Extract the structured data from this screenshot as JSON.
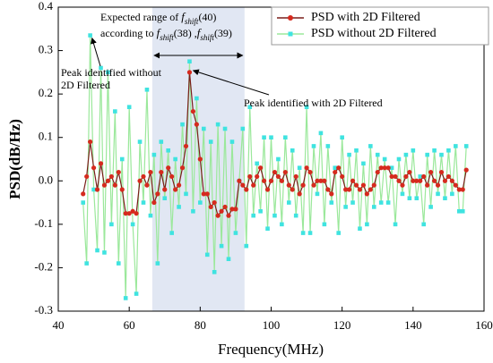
{
  "chart_data": {
    "type": "line",
    "xlabel": "Frequency(MHz)",
    "ylabel": "PSD(dB/Hz)",
    "xlim": [
      40,
      160
    ],
    "xticks": [
      40,
      60,
      80,
      100,
      120,
      140,
      160
    ],
    "ylim": [
      -0.3,
      0.4
    ],
    "yticks": [
      -0.3,
      -0.2,
      -0.1,
      {
        "value": 0,
        "label": "0.0"
      },
      0.1,
      0.2,
      0.3,
      0.4
    ],
    "legend": "upper right",
    "highlight": [
      66.5,
      92.5
    ],
    "highlight_color": "#d9e1f0",
    "annotations": {
      "range": [
        [
          {
            "text": "Expected range of "
          },
          {
            "text": "f",
            "style": "italic"
          },
          {
            "text": "shift",
            "style": "sub"
          },
          {
            "text": "(40)"
          }
        ],
        [
          {
            "text": "according to "
          },
          {
            "text": "f",
            "style": "italic"
          },
          {
            "text": "shift",
            "style": "sub"
          },
          {
            "text": "(38) ,"
          },
          {
            "text": "f",
            "style": "italic"
          },
          {
            "text": "shift",
            "style": "sub"
          },
          {
            "text": "(39)"
          }
        ]
      ],
      "without": [
        "Peak identified  without",
        "2D Filtered"
      ],
      "with": "Peak identified with 2D Filtered"
    },
    "x": [
      47,
      48,
      49,
      50,
      51,
      52,
      53,
      54,
      55,
      56,
      57,
      58,
      59,
      60,
      61,
      62,
      63,
      64,
      65,
      66,
      67,
      68,
      69,
      70,
      71,
      72,
      73,
      74,
      75,
      76,
      77,
      78,
      79,
      80,
      81,
      82,
      83,
      84,
      85,
      86,
      87,
      88,
      89,
      90,
      91,
      92,
      93,
      94,
      95,
      96,
      97,
      98,
      99,
      100,
      101,
      102,
      103,
      104,
      105,
      106,
      107,
      108,
      109,
      110,
      111,
      112,
      113,
      114,
      115,
      116,
      117,
      118,
      119,
      120,
      121,
      122,
      123,
      124,
      125,
      126,
      127,
      128,
      129,
      130,
      131,
      132,
      133,
      134,
      135,
      136,
      137,
      138,
      139,
      140,
      141,
      142,
      143,
      144,
      145,
      146,
      147,
      148,
      149,
      150,
      151,
      152,
      153,
      154,
      155
    ],
    "series": [
      {
        "name": "PSD with 2D Filtered",
        "color": "#d62a1e",
        "line_color": "#7a1f1a",
        "values": [
          -0.03,
          0.01,
          0.09,
          0.03,
          -0.02,
          0.04,
          -0.01,
          0.0,
          0.01,
          -0.01,
          0.02,
          -0.02,
          -0.075,
          -0.075,
          -0.07,
          -0.075,
          0.0,
          0.01,
          -0.01,
          0.02,
          -0.05,
          -0.03,
          0.02,
          -0.02,
          0.03,
          0.01,
          -0.02,
          -0.01,
          0.03,
          0.08,
          0.25,
          0.16,
          0.13,
          0.05,
          -0.03,
          -0.03,
          -0.06,
          -0.05,
          -0.08,
          -0.07,
          -0.06,
          -0.08,
          -0.065,
          -0.065,
          0.0,
          -0.01,
          -0.02,
          0.01,
          -0.01,
          0.01,
          0.03,
          0.0,
          -0.02,
          0.0,
          0.02,
          0.01,
          0.0,
          0.02,
          -0.01,
          -0.02,
          0.01,
          -0.03,
          -0.01,
          0.03,
          0.02,
          -0.01,
          0.0,
          0.0,
          0.0,
          -0.02,
          -0.03,
          0.02,
          0.03,
          0.01,
          -0.02,
          -0.02,
          0.0,
          -0.01,
          -0.02,
          -0.01,
          -0.03,
          -0.02,
          -0.01,
          0.02,
          0.03,
          0.03,
          0.03,
          0.01,
          0.01,
          0.0,
          -0.01,
          0.01,
          0.02,
          0.0,
          0.0,
          0.0,
          0.01,
          -0.01,
          0.02,
          0.0,
          -0.01,
          0.02,
          0.0,
          0.01,
          0.0,
          -0.01,
          -0.02,
          -0.02,
          0.025
        ]
      },
      {
        "name": "PSD without 2D Filtered",
        "color": "#3fe3e0",
        "line_color": "#9be89b",
        "values": [
          -0.05,
          -0.19,
          0.335,
          -0.02,
          -0.16,
          0.26,
          -0.165,
          0.25,
          -0.1,
          0.16,
          -0.19,
          0.05,
          -0.27,
          0.17,
          -0.1,
          -0.26,
          0.09,
          -0.05,
          0.21,
          -0.08,
          0.06,
          -0.19,
          0.09,
          -0.04,
          0.07,
          -0.12,
          0.05,
          -0.06,
          0.13,
          -0.03,
          0.275,
          -0.07,
          0.19,
          -0.05,
          0.12,
          -0.17,
          0.09,
          -0.21,
          0.13,
          -0.15,
          0.12,
          -0.18,
          0.09,
          -0.12,
          0.0,
          0.12,
          -0.15,
          0.17,
          -0.08,
          0.04,
          -0.07,
          0.1,
          -0.11,
          0.1,
          -0.08,
          0.05,
          -0.1,
          0.1,
          -0.05,
          0.07,
          -0.08,
          0.03,
          -0.12,
          0.17,
          -0.12,
          0.08,
          -0.03,
          0.11,
          -0.1,
          0.08,
          -0.05,
          0.03,
          -0.12,
          0.1,
          -0.06,
          0.06,
          -0.05,
          0.07,
          -0.11,
          0.04,
          -0.1,
          0.08,
          -0.06,
          0.06,
          -0.05,
          0.05,
          -0.05,
          0.03,
          -0.1,
          0.05,
          -0.03,
          0.06,
          -0.04,
          0.07,
          -0.04,
          0.01,
          -0.1,
          0.06,
          -0.06,
          0.07,
          -0.03,
          0.06,
          -0.04,
          0.07,
          -0.03,
          0.08,
          -0.07,
          -0.07,
          0.08
        ]
      }
    ]
  }
}
